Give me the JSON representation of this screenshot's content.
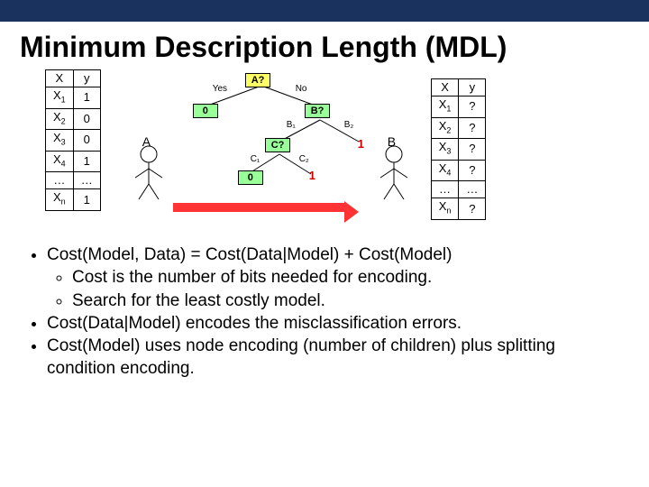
{
  "title": "Minimum Description Length (MDL)",
  "left_table": {
    "cols": [
      "X",
      "y"
    ],
    "rows": [
      [
        "X<sub>1</sub>",
        "1"
      ],
      [
        "X<sub>2</sub>",
        "0"
      ],
      [
        "X<sub>3</sub>",
        "0"
      ],
      [
        "X<sub>4</sub>",
        "1"
      ],
      [
        "…",
        "…"
      ],
      [
        "X<sub>n</sub>",
        "1"
      ]
    ]
  },
  "right_table": {
    "cols": [
      "X",
      "y"
    ],
    "rows": [
      [
        "X<sub>1</sub>",
        "?"
      ],
      [
        "X<sub>2</sub>",
        "?"
      ],
      [
        "X<sub>3</sub>",
        "?"
      ],
      [
        "X<sub>4</sub>",
        "?"
      ],
      [
        "…",
        "…"
      ],
      [
        "X<sub>n</sub>",
        "?"
      ]
    ]
  },
  "tree": {
    "root": {
      "label": "A?",
      "bg": "yellow"
    },
    "b": {
      "label": "B?",
      "bg": "green"
    },
    "c": {
      "label": "C?",
      "bg": "green"
    },
    "edge_yes": "Yes",
    "edge_no": "No",
    "b1": "B₁",
    "b2": "B₂",
    "c1": "C₁",
    "c2": "C₂",
    "leaves": [
      "0",
      "1",
      "0",
      "1"
    ]
  },
  "persons": {
    "a": "A",
    "b": "B"
  },
  "bullets": [
    "Cost(Model, Data) = Cost(Data|Model) + Cost(Model)",
    [
      "Cost is the number of bits needed for encoding.",
      "Search for the least costly model."
    ],
    "Cost(Data|Model) encodes the misclassification errors.",
    "Cost(Model) uses node encoding (number of children) plus splitting condition encoding."
  ],
  "colors": {
    "topbar": "#19325e",
    "yellow": "#ffff66",
    "green": "#99ff99",
    "arrow": "#ff3333",
    "leaf_text": "#cc0000"
  }
}
